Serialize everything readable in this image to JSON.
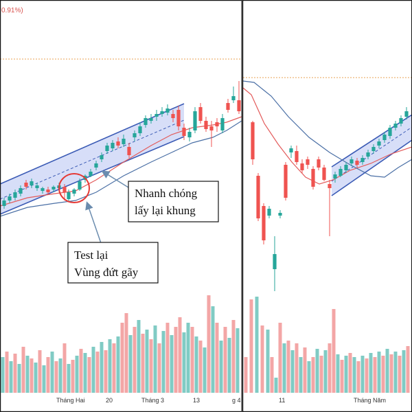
{
  "header": {
    "change_text": "0.91%)"
  },
  "colors": {
    "up": "#26a69a",
    "down": "#ef5350",
    "vol_up": "#80cbc4",
    "vol_down": "#f3a6a6",
    "ma_fast": "#e35b5b",
    "ma_slow": "#4a6fa5",
    "channel_fill": "#c9d3f5",
    "channel_line": "#3b5bb5",
    "dotted": "#e8a050",
    "circle": "#e53935",
    "arrow": "#6b8cae"
  },
  "annotations": {
    "test": {
      "line1": "Test lại",
      "line2": "Vùng đứt gãy"
    },
    "recover": {
      "line1": "Nhanh chóng",
      "line2": "lấy lại khung"
    }
  },
  "chart_data": [
    {
      "type": "candlestick",
      "panel": "left",
      "x_tick_labels": [
        "Tháng Hai",
        "20",
        "Tháng 3",
        "13",
        "g 4"
      ],
      "channel": "ascending",
      "moving_averages": [
        "red",
        "blue"
      ]
    },
    {
      "type": "candlestick",
      "panel": "right",
      "x_tick_labels": [
        "11",
        "Tháng Năm"
      ],
      "channel": "ascending",
      "moving_averages": [
        "red",
        "blue"
      ]
    }
  ]
}
